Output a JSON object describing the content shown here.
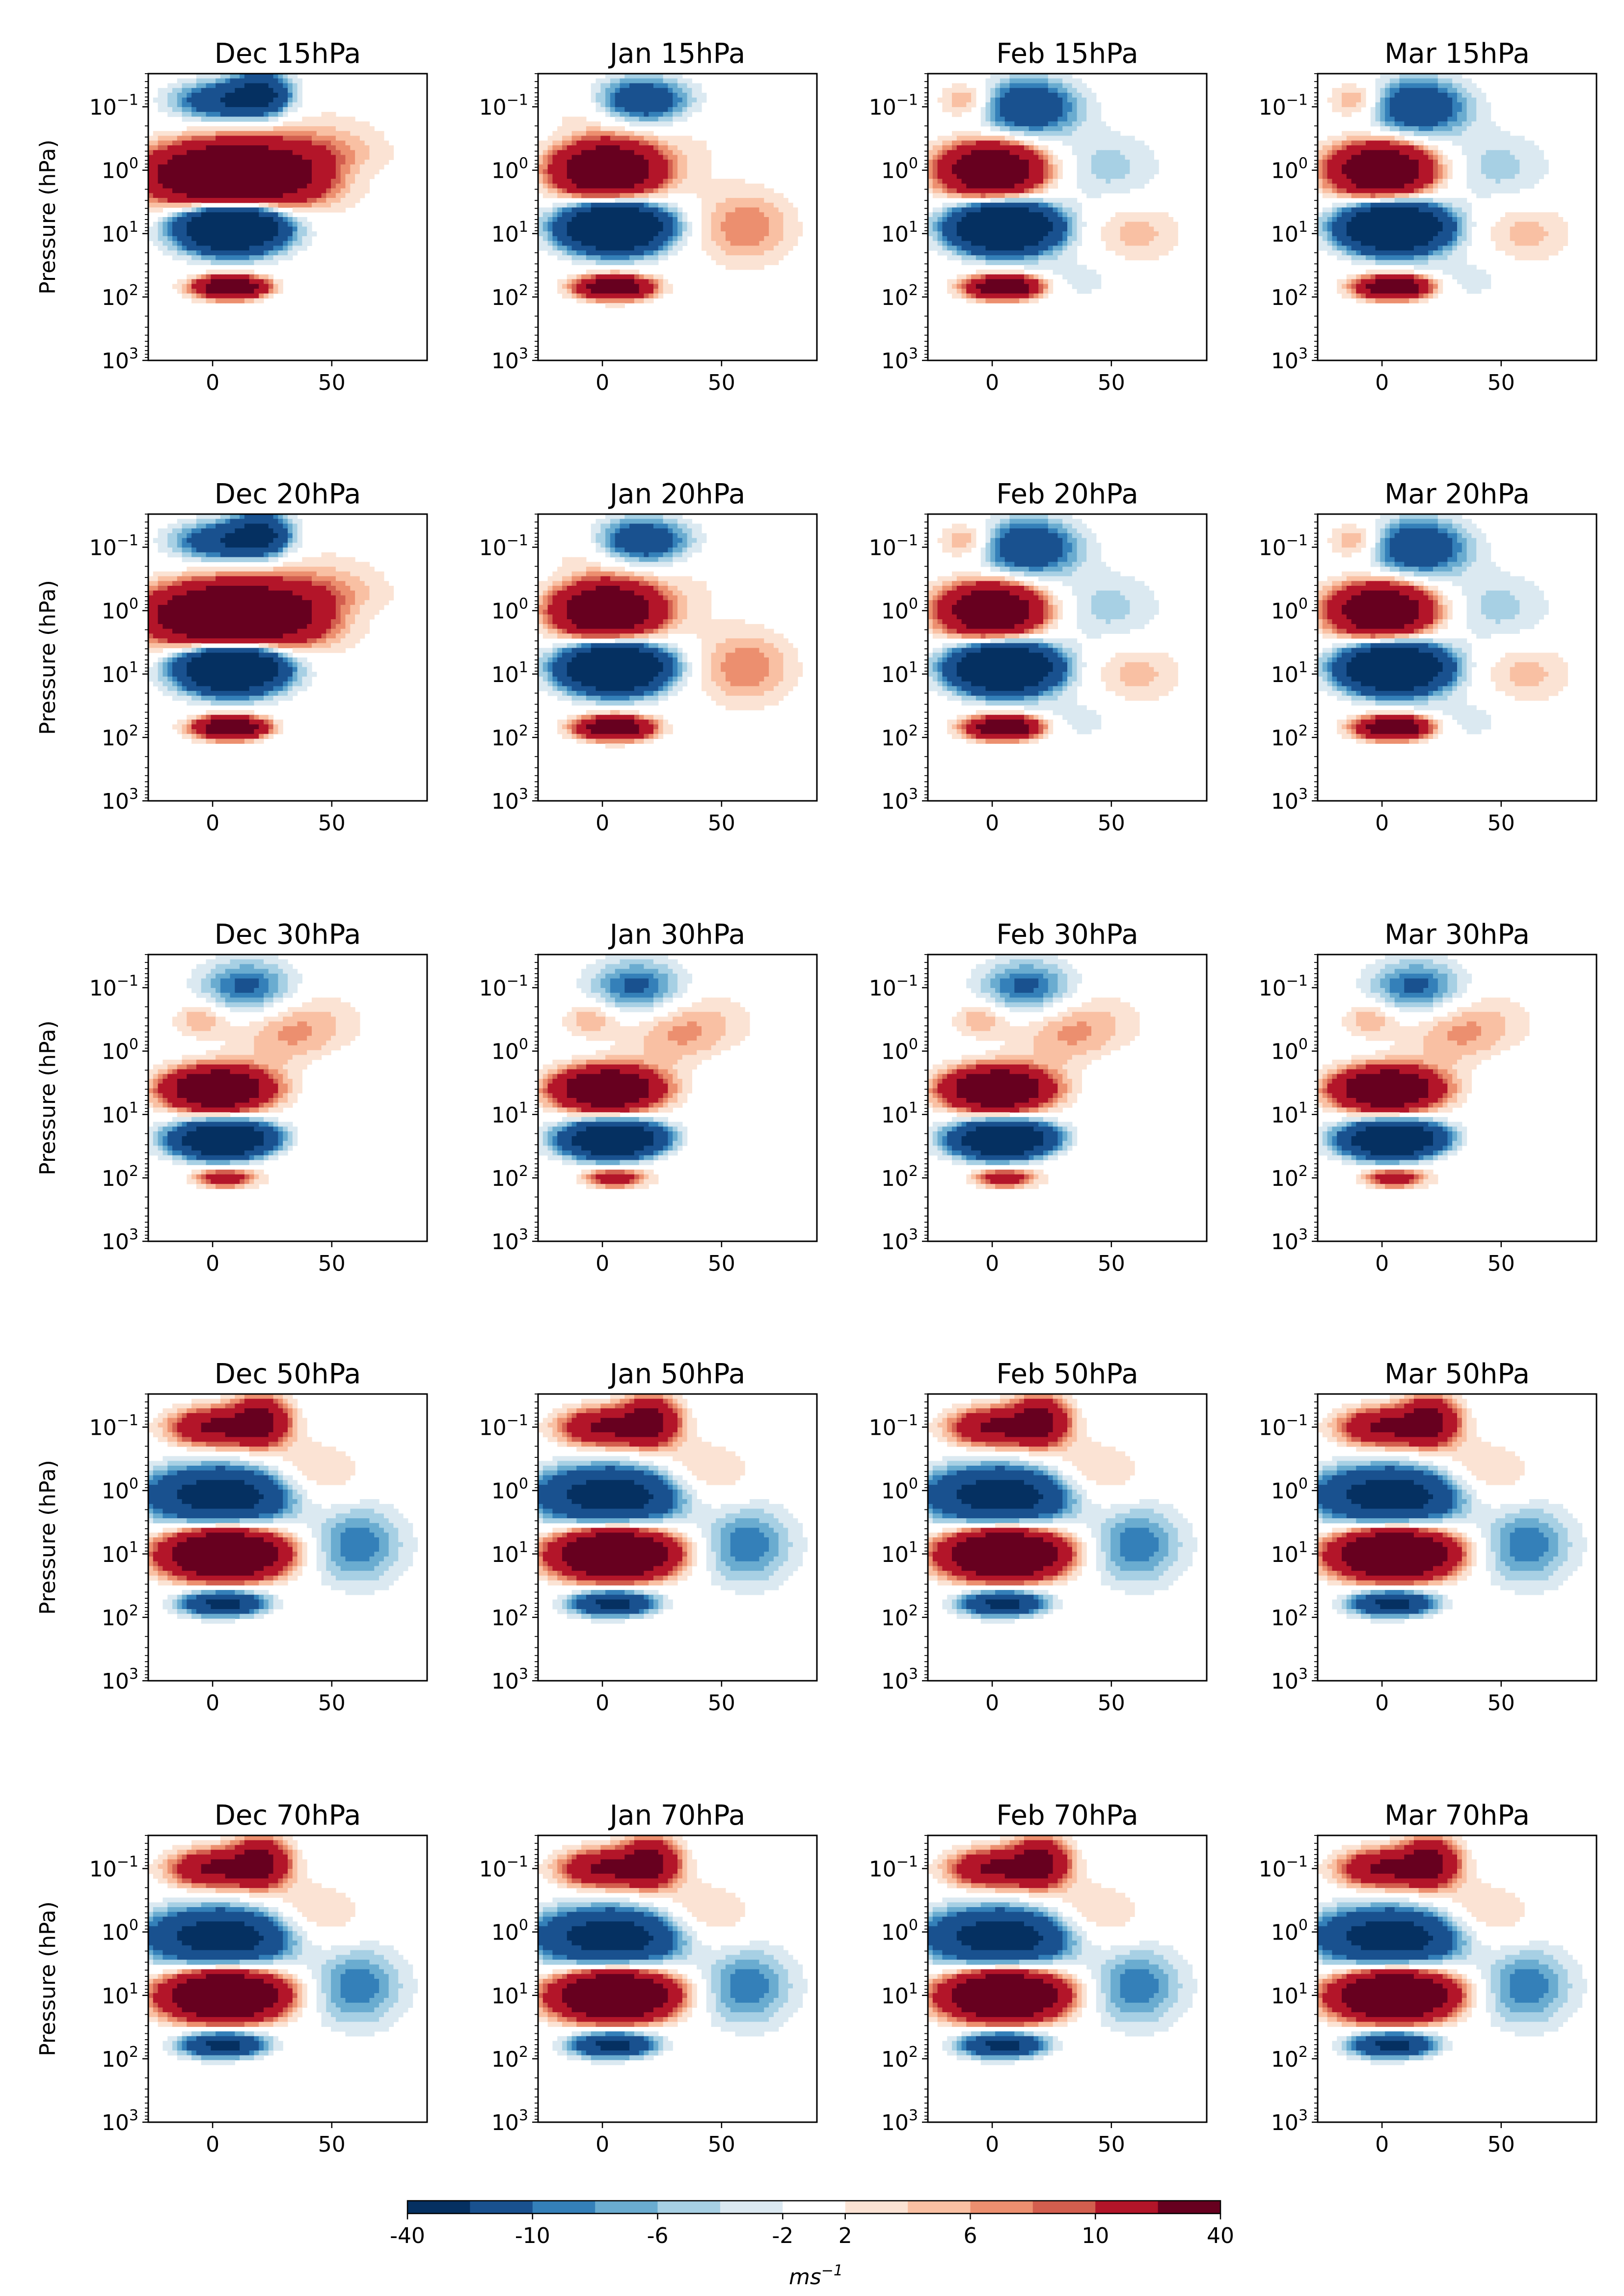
{
  "figure": {
    "ylabel": "Pressure (hPa)",
    "units_label": "ms",
    "units_exponent": "−1"
  },
  "chart_data": {
    "type": "heatmap",
    "description_kind": "filled contour panels of zonal wind anomaly (latitude vs pressure)",
    "rows": [
      "15hPa",
      "20hPa",
      "30hPa",
      "50hPa",
      "70hPa"
    ],
    "columns": [
      "Dec",
      "Jan",
      "Feb",
      "Mar"
    ],
    "panels": [
      {
        "title": "Dec 15hPa",
        "pattern": "A"
      },
      {
        "title": "Jan 15hPa",
        "pattern": "B"
      },
      {
        "title": "Feb 15hPa",
        "pattern": "C"
      },
      {
        "title": "Mar 15hPa",
        "pattern": "C"
      },
      {
        "title": "Dec 20hPa",
        "pattern": "A"
      },
      {
        "title": "Jan 20hPa",
        "pattern": "B"
      },
      {
        "title": "Feb 20hPa",
        "pattern": "C"
      },
      {
        "title": "Mar 20hPa",
        "pattern": "C"
      },
      {
        "title": "Dec 30hPa",
        "pattern": "D"
      },
      {
        "title": "Jan 30hPa",
        "pattern": "D"
      },
      {
        "title": "Feb 30hPa",
        "pattern": "D"
      },
      {
        "title": "Mar 30hPa",
        "pattern": "D"
      },
      {
        "title": "Dec 50hPa",
        "pattern": "E"
      },
      {
        "title": "Jan 50hPa",
        "pattern": "E"
      },
      {
        "title": "Feb 50hPa",
        "pattern": "E"
      },
      {
        "title": "Mar 50hPa",
        "pattern": "E"
      },
      {
        "title": "Dec 70hPa",
        "pattern": "E"
      },
      {
        "title": "Jan 70hPa",
        "pattern": "E"
      },
      {
        "title": "Feb 70hPa",
        "pattern": "E"
      },
      {
        "title": "Mar 70hPa",
        "pattern": "E"
      }
    ],
    "x_axis": {
      "range": [
        -27,
        90
      ],
      "ticks": [
        0,
        50
      ],
      "tick_labels": [
        "0",
        "50"
      ]
    },
    "y_axis": {
      "scale": "log",
      "inverted": true,
      "range": [
        1000,
        0.03
      ],
      "ticks": [
        0.1,
        1,
        10,
        100,
        1000
      ],
      "tick_labels": [
        {
          "base": "10",
          "exp": "−1"
        },
        {
          "base": "10",
          "exp": "0"
        },
        {
          "base": "10",
          "exp": "1"
        },
        {
          "base": "10",
          "exp": "2"
        },
        {
          "base": "10",
          "exp": "3"
        }
      ]
    },
    "colorbar": {
      "bounds": [
        -40,
        -20,
        -10,
        -8,
        -6,
        -4,
        -2,
        2,
        4,
        6,
        8,
        10,
        20,
        40
      ],
      "tick_labels": [
        "-40",
        "-10",
        "-6",
        "-2",
        "2",
        "6",
        "10",
        "40"
      ],
      "tick_values": [
        -40,
        -10,
        -6,
        -2,
        2,
        6,
        10,
        40
      ],
      "colors": [
        "#053061",
        "#19518f",
        "#3480b9",
        "#6aacd0",
        "#a7d0e4",
        "#dbe9f1",
        "#ffffff",
        "#fbe3d4",
        "#f9c0a3",
        "#ec8f6f",
        "#d35e4e",
        "#b31529",
        "#67001f"
      ]
    }
  }
}
